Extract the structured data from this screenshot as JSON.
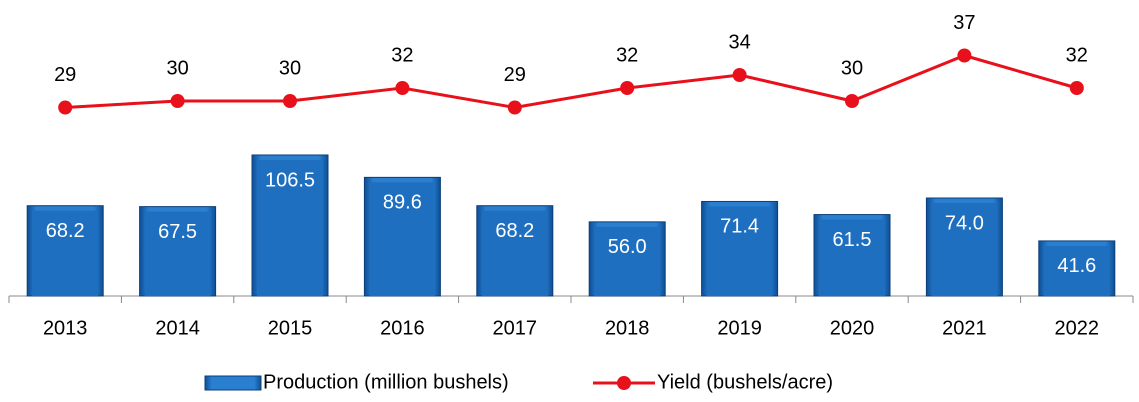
{
  "chart_data": {
    "type": "bar-line",
    "categories": [
      "2013",
      "2014",
      "2015",
      "2016",
      "2017",
      "2018",
      "2019",
      "2020",
      "2021",
      "2022"
    ],
    "series": [
      {
        "name": "Production (million bushels)",
        "type": "bar",
        "color": "#1f6fc0",
        "axis": "y",
        "values": [
          68.2,
          67.5,
          106.5,
          89.6,
          68.2,
          56.0,
          71.4,
          61.5,
          74.0,
          41.6
        ],
        "value_labels": [
          "68.2",
          "67.5",
          "106.5",
          "89.6",
          "68.2",
          "56.0",
          "71.4",
          "61.5",
          "74.0",
          "41.6"
        ]
      },
      {
        "name": "Yield (bushels/acre)",
        "type": "line",
        "color": "#e8101a",
        "axis": "y2",
        "values": [
          29,
          30,
          30,
          32,
          29,
          32,
          34,
          30,
          37,
          32
        ]
      }
    ],
    "ylim": [
      0,
      216
    ],
    "y2lim": [
      0,
      44
    ],
    "legend": "bottom"
  }
}
